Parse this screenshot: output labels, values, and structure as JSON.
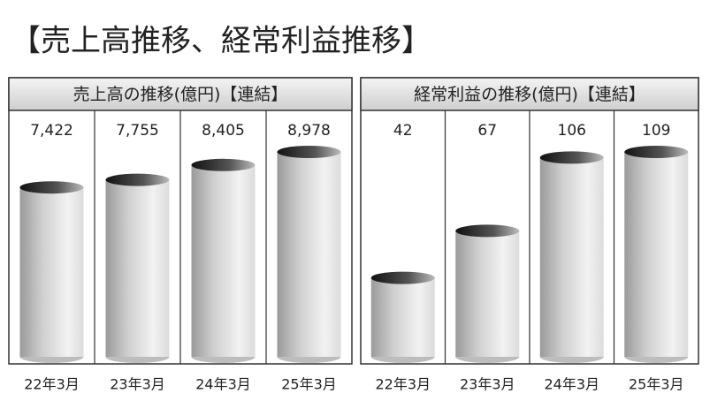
{
  "title": "【売上高推移、経常利益推移】",
  "chart_data": [
    {
      "type": "bar",
      "title": "売上高の推移(億円)【連結】",
      "categories": [
        "22年3月",
        "23年3月",
        "24年3月",
        "25年3月"
      ],
      "values": [
        7422,
        7755,
        8405,
        8978
      ],
      "value_labels": [
        "7,422",
        "7,755",
        "8,405",
        "8,978"
      ]
    },
    {
      "type": "bar",
      "title": "経常利益の推移(億円)【連結】",
      "categories": [
        "22年3月",
        "23年3月",
        "24年3月",
        "25年3月"
      ],
      "values": [
        42,
        67,
        106,
        109
      ]
    }
  ]
}
